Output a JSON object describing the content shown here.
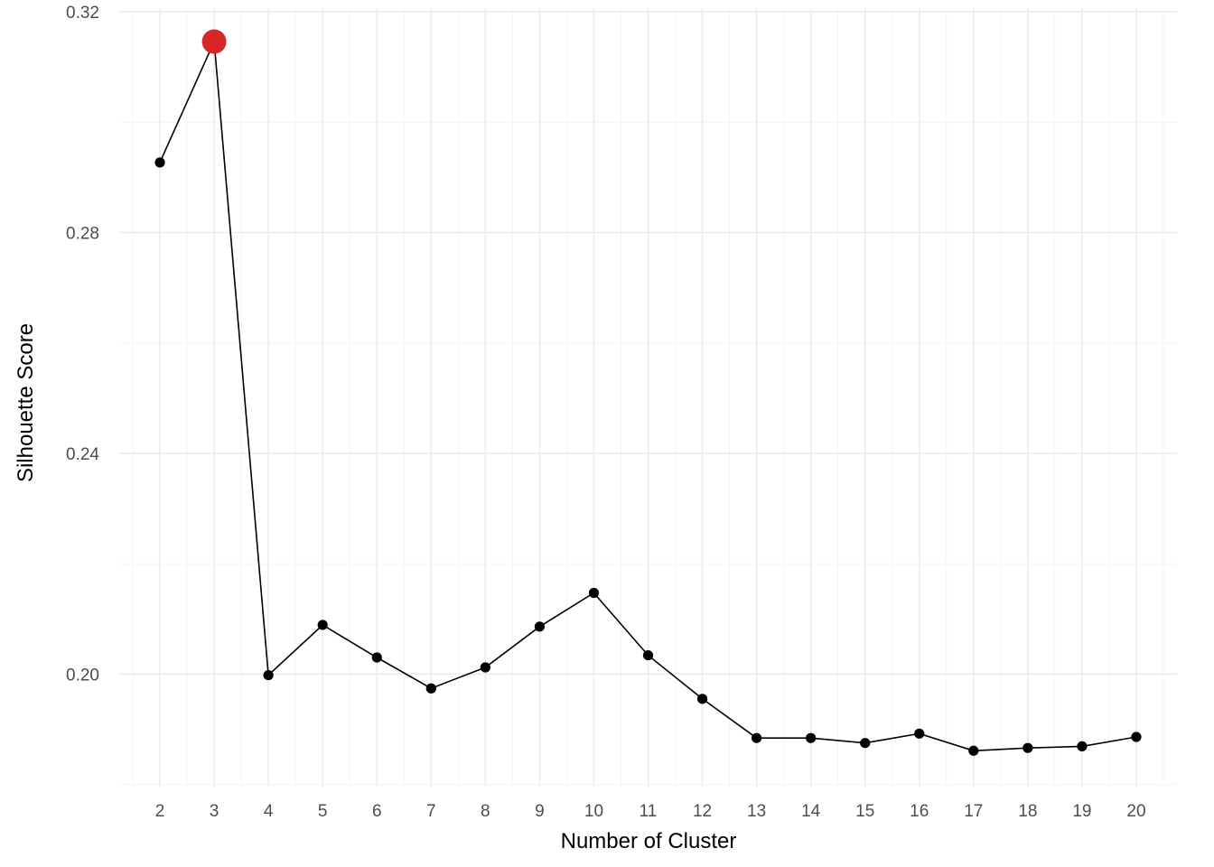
{
  "chart_data": {
    "type": "line",
    "title": "",
    "xlabel": "Number of Cluster",
    "ylabel": "Silhouette Score",
    "x": [
      2,
      3,
      4,
      5,
      6,
      7,
      8,
      9,
      10,
      11,
      12,
      13,
      14,
      15,
      16,
      17,
      18,
      19,
      20
    ],
    "x_tick_labels": [
      "2",
      "3",
      "4",
      "5",
      "6",
      "7",
      "8",
      "9",
      "10",
      "11",
      "12",
      "13",
      "14",
      "15",
      "16",
      "17",
      "18",
      "19",
      "20"
    ],
    "series": [
      {
        "values": [
          0.2927,
          0.3146,
          0.1998,
          0.2089,
          0.203,
          0.1974,
          0.2012,
          0.2086,
          0.2147,
          0.2034,
          0.1955,
          0.1884,
          0.1884,
          0.1875,
          0.1892,
          0.1861,
          0.1866,
          0.1869,
          0.1886
        ],
        "line_color": "#000000",
        "point_color": "#000000"
      }
    ],
    "highlight": {
      "x": 3,
      "y": 0.3146,
      "color": "#d62728"
    },
    "xlim": [
      1.25,
      20.75
    ],
    "ylim": [
      0.1796,
      0.3205
    ],
    "y_ticks": [
      0.2,
      0.24,
      0.28,
      0.32
    ],
    "y_tick_labels": [
      "0.20",
      "0.24",
      "0.28",
      "0.32"
    ],
    "y_minor_ticks": [
      0.18,
      0.22,
      0.26,
      0.3
    ],
    "grid": true,
    "legend": "none"
  }
}
